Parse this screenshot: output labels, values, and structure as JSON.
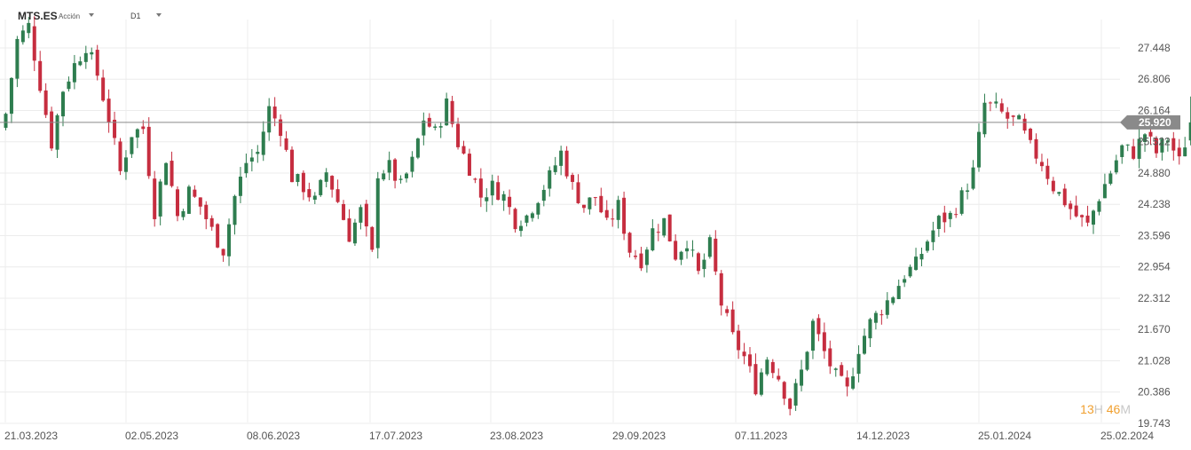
{
  "header": {
    "symbol": "MTS.ES",
    "asset_type": "Acción",
    "timeframe": "D1"
  },
  "countdown": {
    "hours": "13",
    "hours_unit": "H",
    "minutes": "46",
    "minutes_unit": "M"
  },
  "colors": {
    "up": "#2e7d4f",
    "down": "#c62d3f",
    "grid": "#ececec",
    "price_line": "#8a8a8a",
    "price_tag": "#8a8a8a"
  },
  "chart_data": {
    "type": "candlestick",
    "ylim": [
      19.743,
      28.0
    ],
    "y_ticks": [
      "27.448",
      "26.806",
      "26.164",
      "25.522",
      "24.880",
      "24.238",
      "23.596",
      "22.954",
      "22.312",
      "21.670",
      "21.028",
      "20.386",
      "19.743"
    ],
    "x_ticks": [
      "21.03.2023",
      "02.05.2023",
      "08.06.2023",
      "17.07.2023",
      "23.08.2023",
      "29.09.2023",
      "07.11.2023",
      "14.12.2023",
      "25.01.2024",
      "25.02.2024"
    ],
    "current_price": "25.920",
    "close_path": [
      [
        0,
        26.1
      ],
      [
        2,
        27.6
      ],
      [
        4,
        27.9
      ],
      [
        6,
        26.7
      ],
      [
        8,
        25.5
      ],
      [
        10,
        26.6
      ],
      [
        12,
        27.1
      ],
      [
        14,
        27.5
      ],
      [
        16,
        26.9
      ],
      [
        18,
        26.0
      ],
      [
        20,
        24.9
      ],
      [
        22,
        25.7
      ],
      [
        24,
        25.8
      ],
      [
        26,
        24.1
      ],
      [
        28,
        25.2
      ],
      [
        30,
        24.0
      ],
      [
        32,
        24.5
      ],
      [
        34,
        24.2
      ],
      [
        36,
        23.7
      ],
      [
        38,
        23.3
      ],
      [
        40,
        24.4
      ],
      [
        42,
        25.1
      ],
      [
        44,
        25.3
      ],
      [
        46,
        26.2
      ],
      [
        48,
        25.8
      ],
      [
        50,
        24.8
      ],
      [
        52,
        24.6
      ],
      [
        54,
        24.3
      ],
      [
        56,
        24.9
      ],
      [
        58,
        24.3
      ],
      [
        60,
        23.6
      ],
      [
        62,
        24.1
      ],
      [
        64,
        23.2
      ],
      [
        65,
        24.9
      ],
      [
        67,
        25.0
      ],
      [
        69,
        24.6
      ],
      [
        71,
        25.1
      ],
      [
        73,
        26.0
      ],
      [
        75,
        25.7
      ],
      [
        77,
        26.3
      ],
      [
        79,
        25.5
      ],
      [
        81,
        25.0
      ],
      [
        83,
        24.4
      ],
      [
        85,
        24.6
      ],
      [
        87,
        24.4
      ],
      [
        89,
        23.9
      ],
      [
        91,
        24.0
      ],
      [
        93,
        24.4
      ],
      [
        95,
        24.8
      ],
      [
        97,
        25.3
      ],
      [
        99,
        24.6
      ],
      [
        101,
        24.2
      ],
      [
        103,
        24.4
      ],
      [
        105,
        23.8
      ],
      [
        107,
        24.2
      ],
      [
        109,
        23.3
      ],
      [
        111,
        23.1
      ],
      [
        113,
        23.7
      ],
      [
        115,
        23.9
      ],
      [
        117,
        23.2
      ],
      [
        119,
        23.5
      ],
      [
        121,
        22.8
      ],
      [
        123,
        23.4
      ],
      [
        125,
        22.2
      ],
      [
        127,
        21.5
      ],
      [
        129,
        21.1
      ],
      [
        131,
        20.5
      ],
      [
        133,
        21.1
      ],
      [
        135,
        20.7
      ],
      [
        137,
        20.1
      ],
      [
        139,
        20.8
      ],
      [
        141,
        21.8
      ],
      [
        143,
        21.2
      ],
      [
        145,
        20.7
      ],
      [
        147,
        20.4
      ],
      [
        149,
        21.3
      ],
      [
        151,
        21.8
      ],
      [
        153,
        22.1
      ],
      [
        155,
        22.4
      ],
      [
        157,
        22.8
      ],
      [
        159,
        23.0
      ],
      [
        161,
        23.5
      ],
      [
        163,
        23.9
      ],
      [
        165,
        24.0
      ],
      [
        167,
        24.4
      ],
      [
        169,
        24.9
      ],
      [
        171,
        26.3
      ],
      [
        173,
        26.2
      ],
      [
        175,
        26.0
      ],
      [
        177,
        25.9
      ],
      [
        179,
        25.4
      ],
      [
        181,
        25.1
      ],
      [
        183,
        24.6
      ],
      [
        185,
        24.3
      ],
      [
        187,
        24.0
      ],
      [
        189,
        23.8
      ],
      [
        191,
        24.4
      ],
      [
        193,
        24.9
      ],
      [
        195,
        25.4
      ],
      [
        197,
        25.3
      ],
      [
        199,
        25.7
      ],
      [
        201,
        25.3
      ],
      [
        203,
        25.6
      ],
      [
        205,
        25.1
      ],
      [
        207,
        25.9
      ]
    ]
  }
}
